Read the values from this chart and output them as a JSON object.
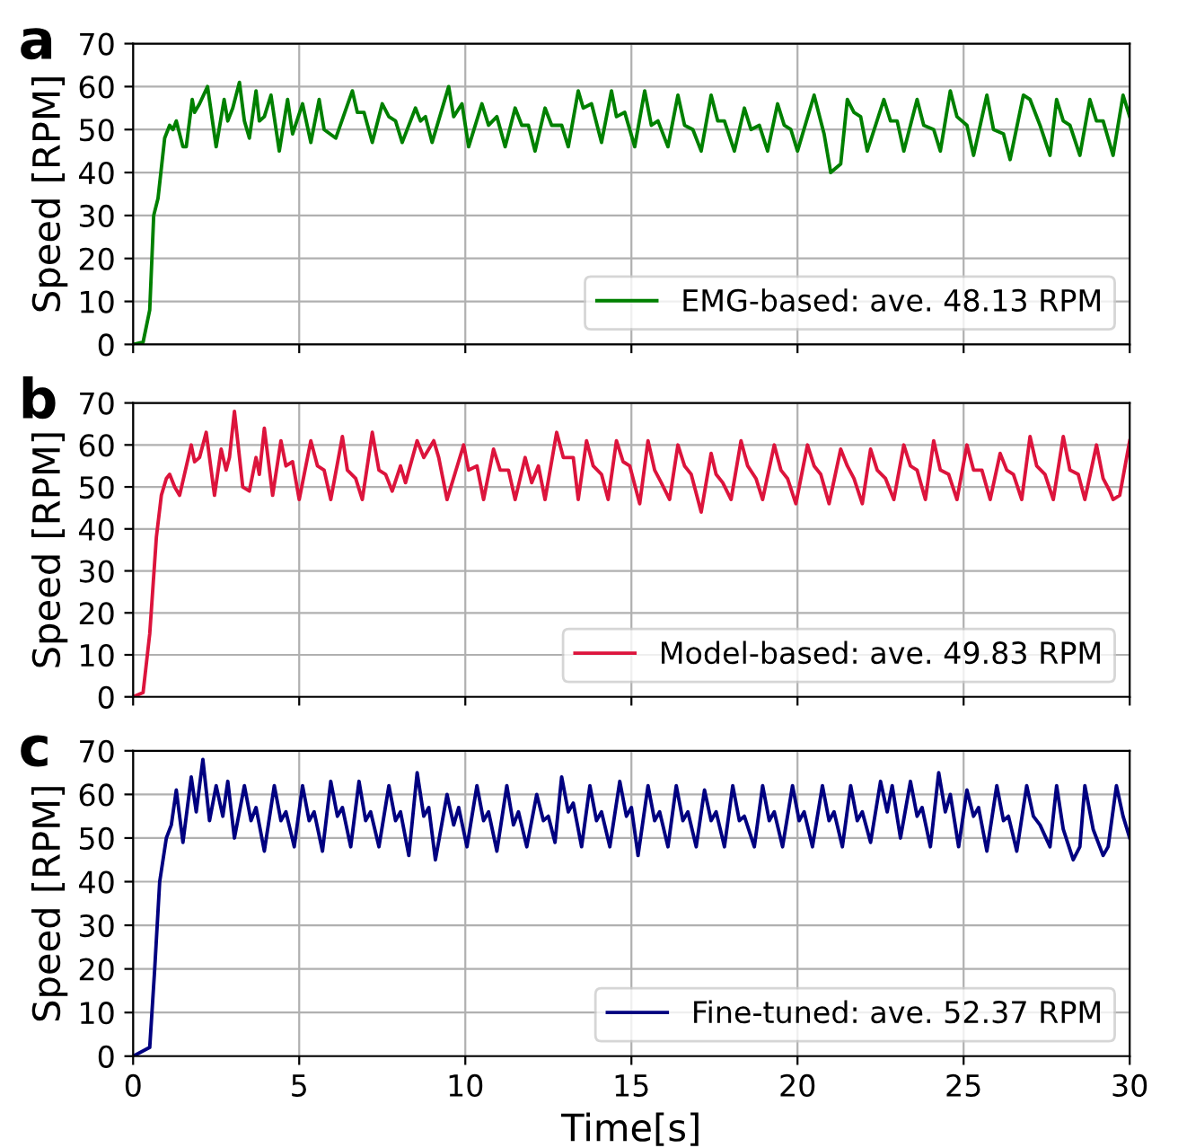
{
  "chart_data": [
    {
      "type": "line",
      "annotations": [
        "a"
      ],
      "ylabel": "Speed [RPM]",
      "xlim": [
        0,
        30
      ],
      "xticks": [
        0,
        5,
        10,
        15,
        20,
        25,
        30
      ],
      "ylim": [
        0,
        70
      ],
      "yticks": [
        0,
        10,
        20,
        30,
        40,
        50,
        60,
        70
      ],
      "grid": true,
      "legend": "lower right",
      "tick_labels": "y",
      "series": [
        {
          "name": "EMG-based: ave. 48.13 RPM",
          "color": "#008000",
          "x": [
            0,
            0.3,
            0.5,
            0.62,
            0.75,
            0.95,
            1.1,
            1.2,
            1.3,
            1.5,
            1.6,
            1.78,
            1.85,
            2.0,
            2.24,
            2.5,
            2.74,
            2.85,
            3.0,
            3.2,
            3.35,
            3.5,
            3.7,
            3.8,
            3.95,
            4.15,
            4.4,
            4.65,
            4.8,
            5.1,
            5.35,
            5.6,
            5.75,
            6.1,
            6.6,
            6.75,
            6.95,
            7.2,
            7.5,
            7.7,
            7.9,
            8.1,
            8.5,
            8.65,
            8.8,
            9.0,
            9.5,
            9.65,
            9.9,
            10.1,
            10.5,
            10.7,
            10.95,
            11.2,
            11.5,
            11.7,
            11.9,
            12.1,
            12.4,
            12.6,
            12.9,
            13.1,
            13.4,
            13.55,
            13.8,
            14.1,
            14.4,
            14.55,
            14.8,
            15.1,
            15.4,
            15.6,
            15.8,
            16.1,
            16.4,
            16.6,
            16.85,
            17.1,
            17.4,
            17.6,
            17.8,
            18.1,
            18.4,
            18.6,
            18.85,
            19.1,
            19.4,
            19.6,
            19.8,
            20.0,
            20.5,
            20.7,
            20.8,
            21.0,
            21.3,
            21.5,
            21.7,
            21.9,
            22.1,
            22.6,
            22.8,
            23.0,
            23.2,
            23.6,
            23.8,
            24.1,
            24.3,
            24.6,
            24.8,
            25.1,
            25.3,
            25.7,
            25.9,
            26.2,
            26.4,
            26.8,
            27.0,
            27.3,
            27.6,
            27.8,
            28.0,
            28.2,
            28.5,
            28.8,
            29.0,
            29.2,
            29.5,
            29.8,
            30
          ],
          "values": [
            0,
            0.5,
            8,
            30,
            34,
            48,
            51,
            50,
            52,
            46,
            46,
            57,
            54,
            56,
            60,
            46,
            57,
            52,
            55,
            61,
            52,
            48,
            59,
            52,
            53,
            58,
            45,
            57,
            49,
            56,
            47,
            57,
            50,
            48,
            59,
            54,
            54,
            47,
            56,
            53,
            52,
            47,
            55,
            52,
            53,
            47,
            60,
            53,
            56,
            46,
            56,
            51,
            53,
            46,
            55,
            51,
            51,
            45,
            55,
            51,
            51,
            46,
            59,
            55,
            56,
            47,
            59,
            53,
            54,
            46,
            59,
            51,
            52,
            46,
            58,
            51,
            50,
            45,
            58,
            52,
            52,
            45,
            55,
            50,
            51,
            45,
            56,
            51,
            50,
            45,
            58,
            52,
            49,
            40,
            42,
            57,
            54,
            53,
            45,
            57,
            52,
            52,
            45,
            57,
            51,
            50,
            45,
            59,
            53,
            51,
            44,
            58,
            50,
            49,
            43,
            58,
            57,
            51,
            44,
            57,
            52,
            51,
            44,
            57,
            52,
            52,
            44,
            58,
            53
          ]
        }
      ]
    },
    {
      "type": "line",
      "annotations": [
        "b"
      ],
      "ylabel": "Speed [RPM]",
      "xlim": [
        0,
        30
      ],
      "xticks": [
        0,
        5,
        10,
        15,
        20,
        25,
        30
      ],
      "ylim": [
        0,
        70
      ],
      "yticks": [
        0,
        10,
        20,
        30,
        40,
        50,
        60,
        70
      ],
      "grid": true,
      "legend": "lower right",
      "tick_labels": "y",
      "series": [
        {
          "name": "Model-based: ave. 49.83 RPM",
          "color": "#dc143c",
          "x": [
            0,
            0.3,
            0.5,
            0.7,
            0.85,
            1.0,
            1.1,
            1.25,
            1.4,
            1.75,
            1.85,
            2.0,
            2.2,
            2.45,
            2.65,
            2.8,
            2.9,
            3.05,
            3.3,
            3.5,
            3.7,
            3.8,
            3.95,
            4.2,
            4.45,
            4.6,
            4.8,
            5.0,
            5.35,
            5.55,
            5.75,
            5.95,
            6.3,
            6.45,
            6.7,
            6.9,
            7.2,
            7.4,
            7.6,
            7.8,
            8.05,
            8.2,
            8.55,
            8.75,
            9.05,
            9.2,
            9.45,
            9.95,
            10.1,
            10.35,
            10.55,
            10.85,
            11.05,
            11.3,
            11.5,
            11.8,
            12.0,
            12.2,
            12.4,
            12.75,
            12.95,
            13.25,
            13.4,
            13.65,
            13.85,
            14.1,
            14.3,
            14.55,
            14.75,
            14.95,
            15.25,
            15.5,
            15.7,
            15.9,
            16.15,
            16.4,
            16.6,
            16.8,
            17.1,
            17.4,
            17.55,
            17.75,
            18.0,
            18.3,
            18.5,
            18.75,
            18.95,
            19.3,
            19.5,
            19.7,
            19.95,
            20.3,
            20.5,
            20.7,
            20.95,
            21.3,
            21.5,
            21.7,
            21.95,
            22.2,
            22.4,
            22.65,
            22.9,
            23.2,
            23.4,
            23.6,
            23.85,
            24.1,
            24.3,
            24.55,
            24.8,
            25.1,
            25.3,
            25.55,
            25.8,
            26.1,
            26.3,
            26.5,
            26.75,
            27.0,
            27.2,
            27.45,
            27.7,
            28.0,
            28.2,
            28.45,
            28.65,
            29.0,
            29.2,
            29.4,
            29.5,
            29.7,
            30
          ],
          "values": [
            0,
            1,
            15,
            38,
            48,
            52,
            53,
            50,
            48,
            60,
            56,
            57,
            63,
            48,
            59,
            54,
            57,
            68,
            50,
            49,
            57,
            53,
            64,
            48,
            61,
            55,
            56,
            47,
            61,
            55,
            54,
            47,
            62,
            54,
            52,
            47,
            63,
            54,
            53,
            49,
            55,
            51,
            61,
            57,
            61,
            57,
            47,
            60,
            54,
            55,
            47,
            59,
            54,
            54,
            47,
            57,
            51,
            55,
            47,
            63,
            57,
            57,
            47,
            61,
            55,
            53,
            47,
            61,
            56,
            55,
            46,
            61,
            54,
            51,
            47,
            60,
            55,
            53,
            44,
            58,
            53,
            51,
            47,
            61,
            55,
            52,
            47,
            60,
            54,
            52,
            46,
            60,
            55,
            53,
            46,
            59,
            55,
            52,
            46,
            59,
            54,
            52,
            47,
            60,
            55,
            54,
            47,
            61,
            54,
            53,
            47,
            60,
            54,
            54,
            47,
            58,
            54,
            53,
            47,
            62,
            55,
            53,
            47,
            62,
            54,
            53,
            47,
            60,
            52,
            49,
            47,
            48,
            61
          ]
        }
      ]
    },
    {
      "type": "line",
      "annotations": [
        "c"
      ],
      "ylabel": "Speed [RPM]",
      "xlabel": "Time[s]",
      "xlim": [
        0,
        30
      ],
      "xticks": [
        0,
        5,
        10,
        15,
        20,
        25,
        30
      ],
      "ylim": [
        0,
        70
      ],
      "yticks": [
        0,
        10,
        20,
        30,
        40,
        50,
        60,
        70
      ],
      "grid": true,
      "legend": "lower right",
      "series": [
        {
          "name": "Fine-tuned: ave. 52.37 RPM",
          "color": "#000080",
          "x": [
            0,
            0.5,
            0.65,
            0.8,
            1.0,
            1.15,
            1.3,
            1.5,
            1.75,
            1.9,
            2.1,
            2.3,
            2.5,
            2.7,
            2.85,
            3.05,
            3.35,
            3.55,
            3.7,
            3.95,
            4.25,
            4.45,
            4.6,
            4.85,
            5.1,
            5.3,
            5.45,
            5.7,
            5.95,
            6.15,
            6.3,
            6.55,
            6.8,
            7.0,
            7.15,
            7.4,
            7.7,
            7.9,
            8.05,
            8.3,
            8.55,
            8.75,
            8.9,
            9.1,
            9.45,
            9.65,
            9.8,
            10.05,
            10.35,
            10.55,
            10.7,
            10.95,
            11.25,
            11.45,
            11.6,
            11.85,
            12.15,
            12.35,
            12.5,
            12.7,
            12.9,
            13.1,
            13.25,
            13.5,
            13.75,
            13.95,
            14.1,
            14.35,
            14.65,
            14.85,
            15.0,
            15.2,
            15.5,
            15.7,
            15.85,
            16.1,
            16.35,
            16.55,
            16.7,
            16.95,
            17.2,
            17.4,
            17.55,
            17.8,
            18.05,
            18.25,
            18.4,
            18.7,
            18.95,
            19.15,
            19.3,
            19.55,
            19.85,
            20.05,
            20.2,
            20.45,
            20.75,
            20.95,
            21.1,
            21.35,
            21.6,
            21.8,
            21.95,
            22.2,
            22.5,
            22.7,
            22.85,
            23.1,
            23.4,
            23.6,
            23.75,
            24.0,
            24.25,
            24.45,
            24.6,
            24.85,
            25.1,
            25.3,
            25.45,
            25.7,
            26.0,
            26.2,
            26.35,
            26.6,
            26.9,
            27.1,
            27.3,
            27.6,
            27.8,
            28.0,
            28.3,
            28.5,
            28.65,
            28.9,
            29.2,
            29.35,
            29.6,
            29.8,
            30
          ],
          "values": [
            0,
            2,
            20,
            40,
            50,
            53,
            61,
            49,
            64,
            56,
            68,
            54,
            62,
            55,
            63,
            50,
            62,
            54,
            57,
            47,
            62,
            54,
            56,
            48,
            62,
            54,
            56,
            47,
            63,
            55,
            57,
            48,
            63,
            54,
            56,
            48,
            62,
            54,
            56,
            46,
            65,
            55,
            57,
            45,
            60,
            53,
            57,
            48,
            62,
            54,
            56,
            47,
            62,
            53,
            56,
            48,
            60,
            54,
            55,
            49,
            64,
            56,
            58,
            48,
            62,
            54,
            56,
            48,
            63,
            55,
            57,
            46,
            62,
            54,
            56,
            48,
            62,
            54,
            56,
            48,
            61,
            54,
            56,
            48,
            62,
            54,
            55,
            48,
            62,
            54,
            56,
            48,
            62,
            54,
            56,
            48,
            62,
            54,
            56,
            48,
            62,
            54,
            56,
            49,
            63,
            56,
            62,
            50,
            63,
            55,
            57,
            48,
            65,
            56,
            60,
            48,
            61,
            55,
            57,
            47,
            62,
            54,
            55,
            47,
            62,
            55,
            53,
            48,
            62,
            52,
            45,
            48,
            62,
            52,
            46,
            48,
            62,
            55,
            50
          ]
        }
      ]
    }
  ]
}
